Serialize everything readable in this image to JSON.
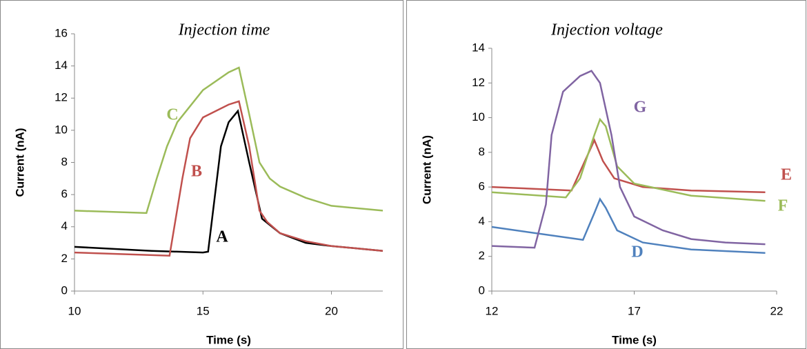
{
  "chart_data": [
    {
      "type": "line",
      "title": "Injection time",
      "x_label": "Time (s)",
      "y_label": "Current (nA)",
      "xlim": [
        10,
        22
      ],
      "xticks": [
        10,
        15,
        20
      ],
      "ylim": [
        0,
        16
      ],
      "yticks": [
        0,
        2,
        4,
        6,
        8,
        10,
        12,
        14,
        16
      ],
      "series": [
        {
          "name": "A",
          "color": "#000000",
          "x": [
            10,
            13,
            15,
            15.2,
            15.7,
            16,
            16.36,
            16.8,
            17.3,
            18,
            19,
            20,
            22
          ],
          "values": [
            2.75,
            2.5,
            2.4,
            2.45,
            9,
            10.5,
            11.2,
            8,
            4.5,
            3.6,
            3.0,
            2.8,
            2.5
          ]
        },
        {
          "name": "B",
          "color": "#c0504d",
          "x": [
            10,
            13.7,
            14.2,
            14.5,
            15,
            16,
            16.4,
            16.8,
            17.2,
            17.5,
            18,
            19,
            20,
            22
          ],
          "values": [
            2.4,
            2.2,
            7,
            9.5,
            10.8,
            11.6,
            11.8,
            9,
            5,
            4.3,
            3.6,
            3.1,
            2.8,
            2.5
          ]
        },
        {
          "name": "C",
          "color": "#9bbb59",
          "x": [
            10,
            12.8,
            13.2,
            13.6,
            14,
            15,
            16,
            16.4,
            16.8,
            17.2,
            17.6,
            18,
            19,
            20,
            22
          ],
          "values": [
            5.0,
            4.85,
            7,
            9,
            10.5,
            12.5,
            13.6,
            13.9,
            11,
            8,
            7,
            6.5,
            5.8,
            5.3,
            5.0
          ]
        }
      ]
    },
    {
      "type": "line",
      "title": "Injection voltage",
      "x_label": "Time (s)",
      "y_label": "Current (nA)",
      "xlim": [
        12,
        22
      ],
      "xticks": [
        12,
        17,
        22
      ],
      "ylim": [
        0,
        14
      ],
      "yticks": [
        0,
        2,
        4,
        6,
        8,
        10,
        12,
        14
      ],
      "series": [
        {
          "name": "D",
          "color": "#4f81bd",
          "x": [
            12,
            15.2,
            15.6,
            15.8,
            16.0,
            16.4,
            17.3,
            19,
            21.6
          ],
          "values": [
            3.7,
            2.95,
            4.5,
            5.3,
            4.8,
            3.5,
            2.8,
            2.4,
            2.2
          ]
        },
        {
          "name": "E",
          "color": "#c0504d",
          "x": [
            12,
            14.8,
            15.6,
            15.9,
            16.3,
            17.3,
            19,
            21.6
          ],
          "values": [
            6.0,
            5.8,
            8.7,
            7.5,
            6.5,
            6.0,
            5.8,
            5.7
          ]
        },
        {
          "name": "F",
          "color": "#9bbb59",
          "x": [
            12,
            14.6,
            15.1,
            15.6,
            15.8,
            16.0,
            16.4,
            17,
            19,
            21.6
          ],
          "values": [
            5.7,
            5.4,
            6.5,
            9,
            9.9,
            9.5,
            7.2,
            6.2,
            5.5,
            5.2
          ]
        },
        {
          "name": "G",
          "color": "#8064a2",
          "x": [
            12,
            13.5,
            13.9,
            14.1,
            14.5,
            15.1,
            15.5,
            15.8,
            16.2,
            16.5,
            17,
            18,
            19,
            20.2,
            21.6
          ],
          "values": [
            2.6,
            2.5,
            5,
            9,
            11.5,
            12.4,
            12.7,
            12,
            9,
            6,
            4.3,
            3.5,
            3.0,
            2.8,
            2.7
          ]
        }
      ]
    }
  ]
}
